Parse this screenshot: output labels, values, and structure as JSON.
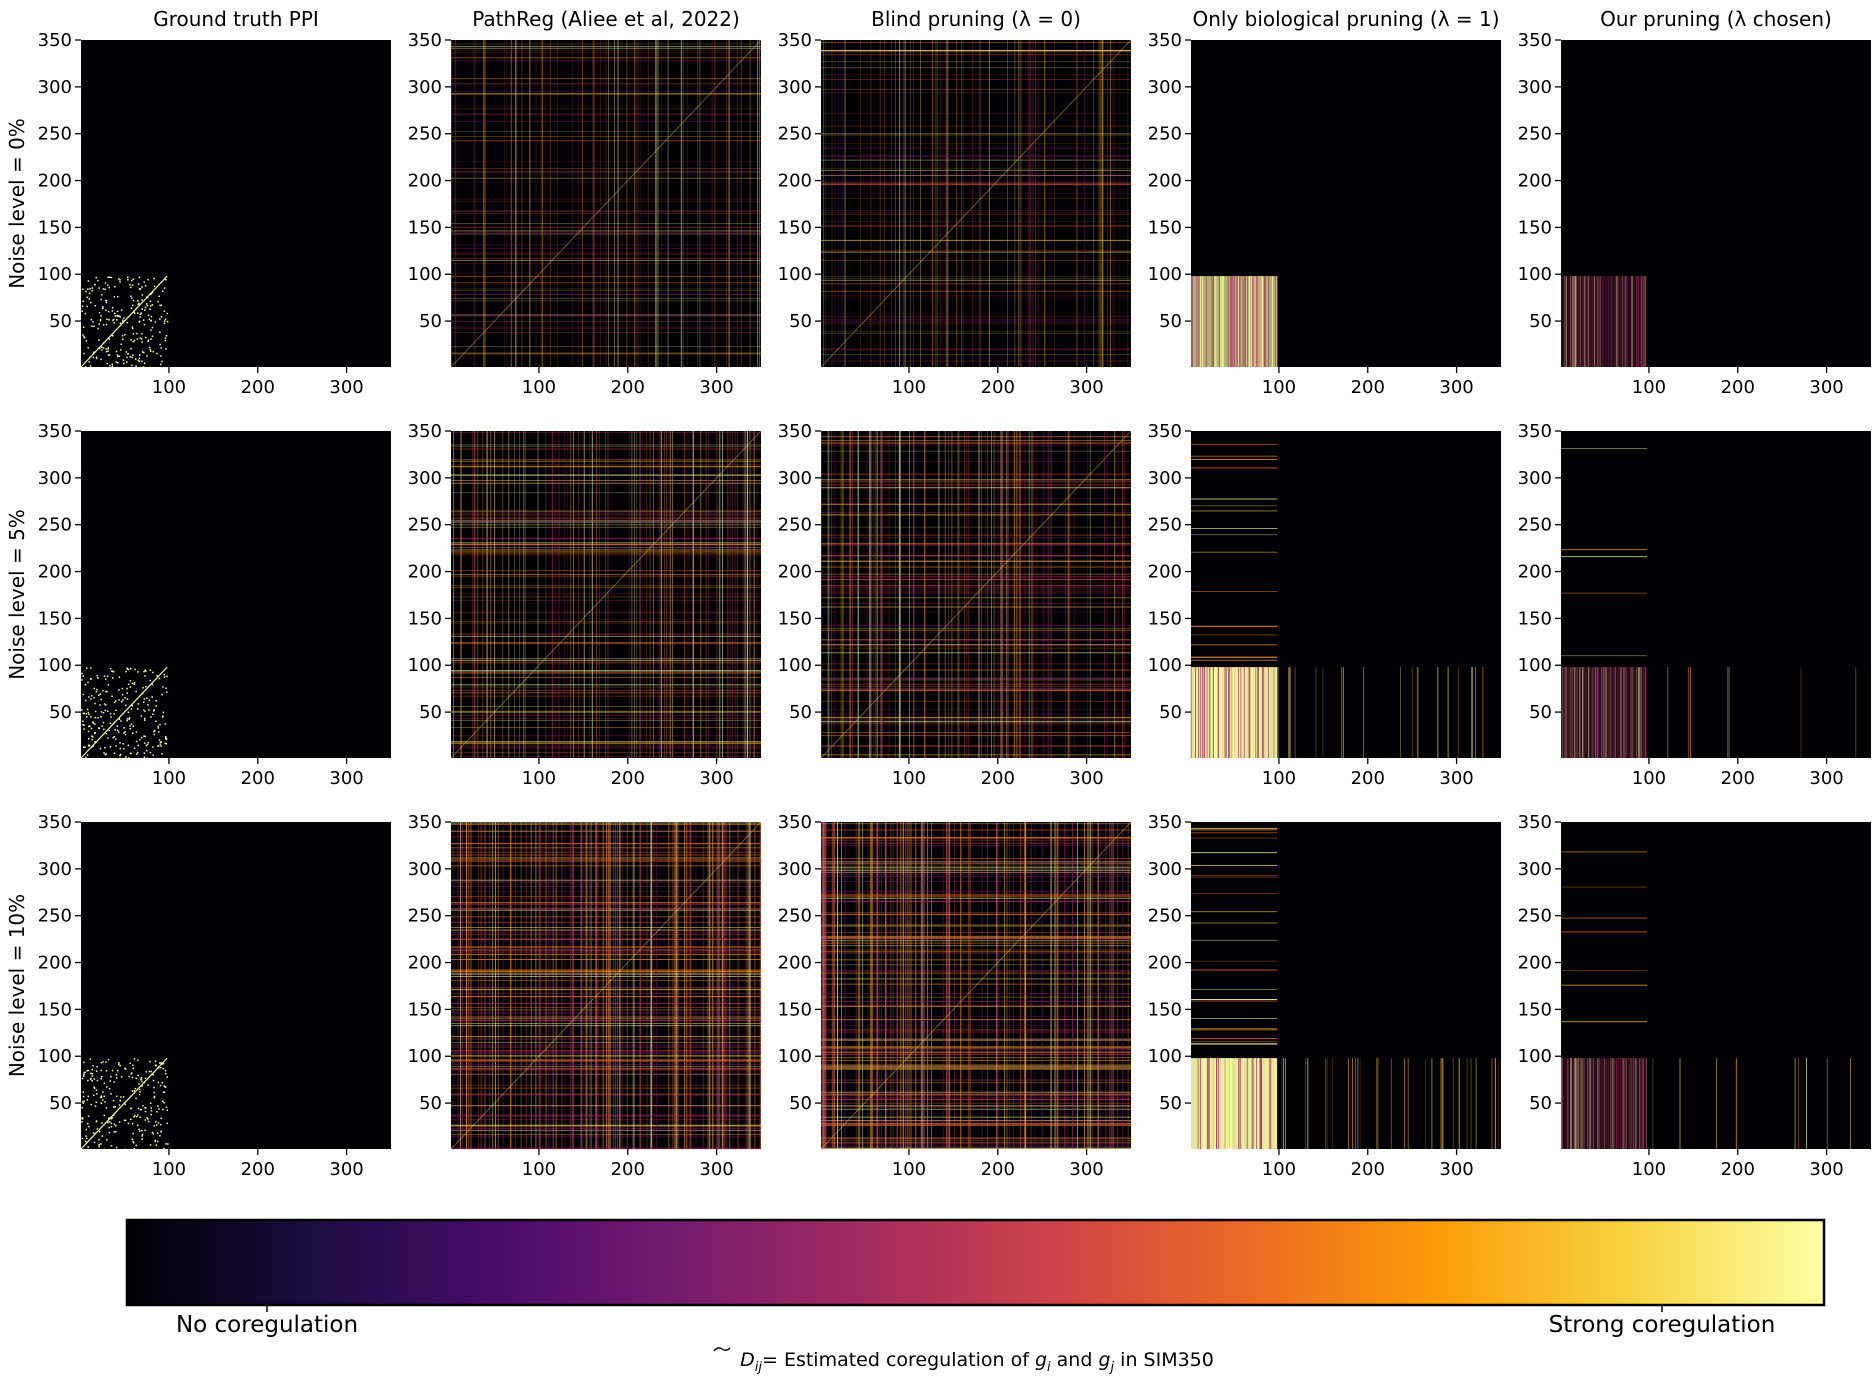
{
  "chart_data": {
    "type": "heatmap",
    "title": "",
    "columns": [
      "Ground truth PPI",
      "PathReg (Aliee et al, 2022)",
      "Blind pruning (λ = 0)",
      "Only biological pruning (λ = 1)",
      "Our pruning (λ chosen)"
    ],
    "rows": [
      "Noise level = 0%",
      "Noise level = 5%",
      "Noise level = 10%"
    ],
    "matrix_size": 350,
    "xlim": [
      1,
      350
    ],
    "ylim": [
      1,
      350
    ],
    "x_ticks": [
      "100",
      "200",
      "300"
    ],
    "y_ticks": [
      "50",
      "100",
      "150",
      "200",
      "250",
      "300",
      "350"
    ],
    "true_block": [
      1,
      98
    ],
    "colormap": "inferno",
    "colorbar": {
      "low_label": "No coregulation",
      "high_label": "Strong coregulation",
      "caption_main": "D",
      "caption_sub": "ij",
      "caption_mid": "= Estimated coregulation of ",
      "caption_g1": "g",
      "caption_g1_sub": "i",
      "caption_and": " and ",
      "caption_g2": "g",
      "caption_g2_sub": "j",
      "caption_end": " in SIM350"
    }
  },
  "colors": {
    "background": "#000004",
    "gradient": [
      "#000004",
      "#1b0c41",
      "#4a0c6b",
      "#781c6d",
      "#a52c60",
      "#cf4446",
      "#ed6925",
      "#fb9b06",
      "#f7d13d",
      "#fcffa4"
    ]
  }
}
